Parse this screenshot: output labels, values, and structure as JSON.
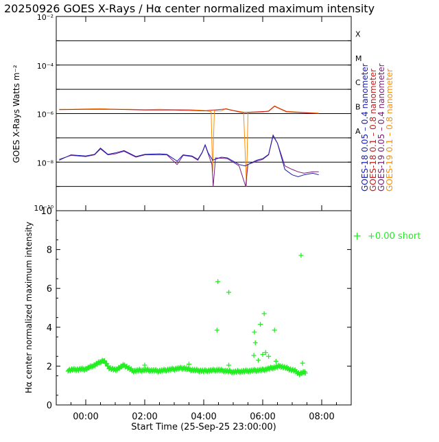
{
  "title": "20250926 GOES X-Rays / Hα center normalized maximum intensity",
  "colors": {
    "goes18_short": "#1a1ab4",
    "goes18_long": "#c81818",
    "goes19_short": "#7a1a7a",
    "goes19_long": "#ff8c00",
    "halpha": "#22ee22"
  },
  "chart_data": [
    {
      "type": "line",
      "ylabel": "GOES X-Rays Watts m⁻²",
      "yscale": "log",
      "ylim": [
        1e-10,
        0.01
      ],
      "xlim": [
        "-01:00",
        "09:00"
      ],
      "y_tick_labels": [
        "10⁻¹⁰",
        "10⁻⁸",
        "10⁻⁶",
        "10⁻⁴",
        "10⁻²"
      ],
      "flare_classes": [
        "A",
        "B",
        "C",
        "M",
        "X"
      ],
      "legend": [
        {
          "label": "GOES-18  0.05 – 0.4  nanometer",
          "color_key": "goes18_short"
        },
        {
          "label": "GOES-18  0.1  – 0.8  nanometer",
          "color_key": "goes18_long"
        },
        {
          "label": "GOES-19  0.05 – 0.4  nanometer",
          "color_key": "goes19_short"
        },
        {
          "label": "GOES-19  0.1  – 0.8  nanometer",
          "color_key": "goes19_long"
        }
      ],
      "series": [
        {
          "name": "GOES-19  0.1  – 0.8  nanometer",
          "color_key": "goes19_long",
          "points": [
            [
              -0.9,
              1.5e-06
            ],
            [
              -0.5,
              1.5e-06
            ],
            [
              0,
              1.55e-06
            ],
            [
              0.5,
              1.6e-06
            ],
            [
              1,
              1.5e-06
            ],
            [
              1.5,
              1.5e-06
            ],
            [
              2,
              1.45e-06
            ],
            [
              2.5,
              1.5e-06
            ],
            [
              3,
              1.45e-06
            ],
            [
              3.5,
              1.45e-06
            ],
            [
              4,
              1.35e-06
            ],
            [
              4.25,
              1.2e-06
            ],
            [
              4.3,
              4e-09
            ],
            [
              4.36,
              1.3e-06
            ],
            [
              4.6,
              1.3e-06
            ],
            [
              4.75,
              1.6e-06
            ],
            [
              5,
              1.35e-06
            ],
            [
              5.35,
              1.15e-06
            ],
            [
              5.45,
              1e-09
            ],
            [
              5.5,
              1.1e-06
            ],
            [
              6,
              1.15e-06
            ],
            [
              6.2,
              1.3e-06
            ],
            [
              6.4,
              2.1e-06
            ],
            [
              6.6,
              1.6e-06
            ],
            [
              6.8,
              1.25e-06
            ],
            [
              7,
              1.2e-06
            ],
            [
              7.5,
              1.1e-06
            ],
            [
              7.9,
              1.05e-06
            ]
          ]
        },
        {
          "name": "GOES-18  0.1  – 0.8  nanometer",
          "color_key": "goes18_long",
          "points": [
            [
              -0.9,
              1.45e-06
            ],
            [
              0,
              1.5e-06
            ],
            [
              1,
              1.5e-06
            ],
            [
              2,
              1.4e-06
            ],
            [
              3,
              1.4e-06
            ],
            [
              4,
              1.3e-06
            ],
            [
              4.75,
              1.55e-06
            ],
            [
              5.3,
              1.1e-06
            ],
            [
              6.2,
              1.25e-06
            ],
            [
              6.4,
              2e-06
            ],
            [
              6.8,
              1.2e-06
            ],
            [
              7.9,
              1e-06
            ]
          ]
        },
        {
          "name": "GOES-19  0.05 – 0.4  nanometer",
          "color_key": "goes19_short",
          "points": [
            [
              -0.9,
              1.3e-08
            ],
            [
              -0.5,
              1.9e-08
            ],
            [
              0,
              1.7e-08
            ],
            [
              0.3,
              2e-08
            ],
            [
              0.5,
              3.5e-08
            ],
            [
              0.75,
              2e-08
            ],
            [
              1,
              2.2e-08
            ],
            [
              1.3,
              2.8e-08
            ],
            [
              1.7,
              1.6e-08
            ],
            [
              2,
              2e-08
            ],
            [
              2.5,
              2e-08
            ],
            [
              2.75,
              2e-08
            ],
            [
              3.1,
              8e-09
            ],
            [
              3.3,
              1.9e-08
            ],
            [
              3.6,
              1.7e-08
            ],
            [
              3.8,
              1.2e-08
            ],
            [
              3.95,
              2.5e-08
            ],
            [
              4.05,
              5e-08
            ],
            [
              4.15,
              2.2e-08
            ],
            [
              4.28,
              8e-09
            ],
            [
              4.32,
              1e-09
            ],
            [
              4.4,
              1.5e-08
            ],
            [
              4.8,
              1.4e-08
            ],
            [
              5.2,
              7e-09
            ],
            [
              5.42,
              1e-09
            ],
            [
              5.5,
              8e-09
            ],
            [
              5.8,
              1.1e-08
            ],
            [
              6,
              1.3e-08
            ],
            [
              6.2,
              2e-08
            ],
            [
              6.35,
              1.2e-07
            ],
            [
              6.5,
              6e-08
            ],
            [
              6.75,
              7e-09
            ],
            [
              7,
              5e-09
            ],
            [
              7.2,
              4e-09
            ],
            [
              7.4,
              3.5e-09
            ],
            [
              7.7,
              4e-09
            ],
            [
              7.9,
              4e-09
            ]
          ]
        },
        {
          "name": "GOES-18  0.05 – 0.4  nanometer",
          "color_key": "goes18_short",
          "points": [
            [
              -0.9,
              1.2e-08
            ],
            [
              -0.5,
              2e-08
            ],
            [
              0,
              1.8e-08
            ],
            [
              0.3,
              2.1e-08
            ],
            [
              0.5,
              3.8e-08
            ],
            [
              0.75,
              2.1e-08
            ],
            [
              1,
              2.4e-08
            ],
            [
              1.3,
              3e-08
            ],
            [
              1.7,
              1.7e-08
            ],
            [
              2,
              2.1e-08
            ],
            [
              2.5,
              2.2e-08
            ],
            [
              2.75,
              2.1e-08
            ],
            [
              3.1,
              1.1e-08
            ],
            [
              3.3,
              2e-08
            ],
            [
              3.6,
              1.8e-08
            ],
            [
              3.8,
              1.3e-08
            ],
            [
              3.95,
              2.6e-08
            ],
            [
              4.05,
              5.2e-08
            ],
            [
              4.15,
              2.4e-08
            ],
            [
              4.3,
              1.2e-08
            ],
            [
              4.6,
              1.6e-08
            ],
            [
              4.8,
              1.5e-08
            ],
            [
              5.2,
              8e-09
            ],
            [
              5.4,
              7e-09
            ],
            [
              5.8,
              1.2e-08
            ],
            [
              6,
              1.4e-08
            ],
            [
              6.2,
              2.1e-08
            ],
            [
              6.35,
              1.3e-07
            ],
            [
              6.5,
              6e-08
            ],
            [
              6.75,
              5e-09
            ],
            [
              7,
              3e-09
            ],
            [
              7.2,
              2.5e-09
            ],
            [
              7.4,
              3e-09
            ],
            [
              7.7,
              3.5e-09
            ],
            [
              7.9,
              3e-09
            ]
          ]
        }
      ]
    },
    {
      "type": "scatter",
      "ylabel": "Hα center normalized maximum intensity",
      "xlabel": "Start Time (25-Sep-25 23:00:00)",
      "ylim": [
        0,
        10
      ],
      "y_ticks": [
        0,
        2,
        4,
        6,
        8,
        10
      ],
      "xlim": [
        "-01:00",
        "09:00"
      ],
      "x_tick_labels": [
        "00:00",
        "02:00",
        "04:00",
        "06:00",
        "08:00"
      ],
      "legend": {
        "marker": "+",
        "label": "+0.00 short"
      },
      "series": [
        {
          "name": "+0.00 short",
          "color_key": "halpha",
          "baseline": {
            "x_range": [
              -0.6,
              7.45
            ],
            "points": [
              [
                -0.6,
                1.8
              ],
              [
                0,
                1.85
              ],
              [
                0.3,
                2.05
              ],
              [
                0.6,
                2.3
              ],
              [
                0.8,
                1.9
              ],
              [
                1,
                1.8
              ],
              [
                1.3,
                2.05
              ],
              [
                1.6,
                1.75
              ],
              [
                2,
                1.8
              ],
              [
                2.5,
                1.75
              ],
              [
                3,
                1.85
              ],
              [
                3.3,
                1.9
              ],
              [
                3.6,
                1.8
              ],
              [
                4,
                1.75
              ],
              [
                4.5,
                1.8
              ],
              [
                5,
                1.7
              ],
              [
                5.5,
                1.75
              ],
              [
                6,
                1.8
              ],
              [
                6.3,
                1.9
              ],
              [
                6.6,
                2
              ],
              [
                6.9,
                1.85
              ],
              [
                7.1,
                1.75
              ],
              [
                7.25,
                1.6
              ],
              [
                7.45,
                1.7
              ]
            ]
          },
          "outliers": [
            [
              4.48,
              6.35
            ],
            [
              4.85,
              5.8
            ],
            [
              4.45,
              3.85
            ],
            [
              5.72,
              3.75
            ],
            [
              5.75,
              3.2
            ],
            [
              5.92,
              4.15
            ],
            [
              6.05,
              4.7
            ],
            [
              6.4,
              3.85
            ],
            [
              7.3,
              7.7
            ],
            [
              5.85,
              2.3
            ],
            [
              6,
              2.6
            ],
            [
              6.1,
              2.7
            ],
            [
              6.2,
              2.5
            ],
            [
              5.7,
              2.55
            ],
            [
              7.35,
              2.15
            ],
            [
              6.45,
              2.25
            ],
            [
              2,
              2.05
            ],
            [
              3.5,
              2.1
            ],
            [
              4.85,
              2.05
            ]
          ]
        }
      ]
    }
  ]
}
